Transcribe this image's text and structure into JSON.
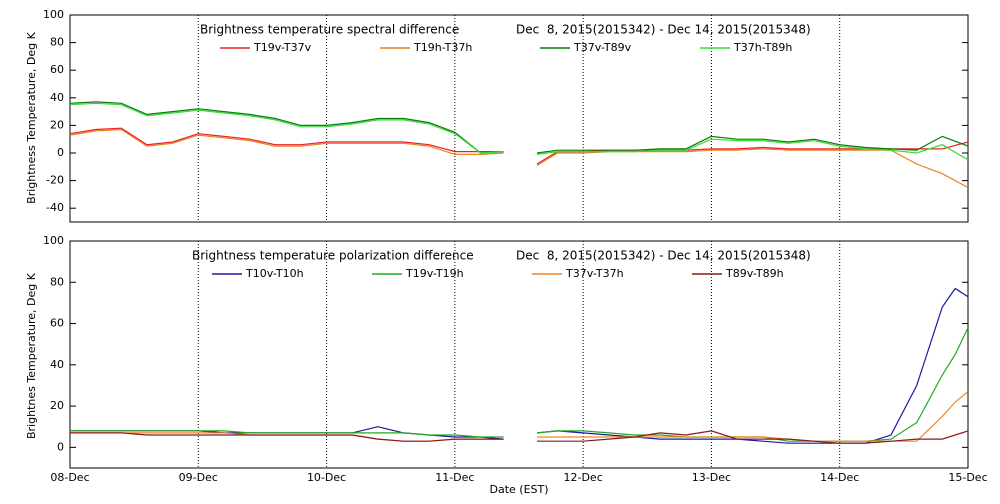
{
  "chart_data": [
    {
      "type": "line",
      "title": "Brightness temperature spectral difference",
      "subtitle": "Dec  8, 2015(2015342) - Dec 14, 2015(2015348)",
      "ylabel": "Brightness Temperature, Deg K",
      "x": [
        0,
        0.2,
        0.4,
        0.6,
        0.8,
        1.0,
        1.2,
        1.4,
        1.6,
        1.8,
        2.0,
        2.2,
        2.4,
        2.6,
        2.8,
        3.0,
        3.2,
        3.38,
        3.5,
        3.64,
        3.8,
        4.0,
        4.2,
        4.4,
        4.6,
        4.8,
        5.0,
        5.2,
        5.4,
        5.6,
        5.8,
        6.0,
        6.2,
        6.4,
        6.6,
        6.8,
        7.0
      ],
      "xlim": [
        0,
        7
      ],
      "xticks": [
        0,
        1,
        2,
        3,
        4,
        5,
        6,
        7
      ],
      "ylim": [
        -50,
        100
      ],
      "yticks": [
        -40,
        -20,
        0,
        20,
        40,
        60,
        80,
        100
      ],
      "grid": true,
      "series": [
        {
          "name": "T19v-T37v",
          "color": "#e8202a",
          "values": [
            14,
            17,
            18,
            6,
            8,
            14,
            12,
            10,
            6,
            6,
            8,
            8,
            8,
            8,
            6,
            1,
            1,
            1,
            null,
            -8,
            1,
            1,
            2,
            2,
            2,
            2,
            3,
            3,
            4,
            3,
            3,
            3,
            3,
            3,
            3,
            3,
            8
          ]
        },
        {
          "name": "T19h-T37h",
          "color": "#e8801e",
          "values": [
            13,
            16,
            17,
            5,
            7,
            13,
            11,
            9,
            5,
            5,
            7,
            7,
            7,
            7,
            5,
            -1,
            -1,
            0,
            null,
            -9,
            0,
            0,
            1,
            1,
            1,
            1,
            2,
            2,
            3,
            2,
            2,
            2,
            2,
            2,
            -8,
            -15,
            -25
          ]
        },
        {
          "name": "T37v-T89v",
          "color": "#0a7a0a",
          "values": [
            36,
            37,
            36,
            28,
            30,
            32,
            30,
            28,
            25,
            20,
            20,
            22,
            25,
            25,
            22,
            15,
            0,
            1,
            null,
            0,
            2,
            2,
            2,
            2,
            3,
            3,
            12,
            10,
            10,
            8,
            10,
            6,
            4,
            3,
            2,
            12,
            5
          ]
        },
        {
          "name": "T37h-T89h",
          "color": "#33dd33",
          "values": [
            35,
            36,
            35,
            27,
            29,
            31,
            29,
            27,
            24,
            19,
            19,
            21,
            24,
            24,
            21,
            14,
            0,
            1,
            null,
            -1,
            1,
            1,
            1,
            1,
            2,
            2,
            10,
            9,
            9,
            7,
            9,
            5,
            3,
            2,
            0,
            6,
            -5
          ]
        }
      ]
    },
    {
      "type": "line",
      "title": "Brightness temperature polarization difference",
      "subtitle": "Dec  8, 2015(2015342) - Dec 14, 2015(2015348)",
      "ylabel": "Brightnes Temperature, Deg K",
      "xlabel": "Date (EST)",
      "x": [
        0,
        0.2,
        0.4,
        0.6,
        0.8,
        1.0,
        1.2,
        1.4,
        1.6,
        1.8,
        2.0,
        2.2,
        2.4,
        2.6,
        2.8,
        3.0,
        3.2,
        3.38,
        3.5,
        3.64,
        3.8,
        4.0,
        4.2,
        4.4,
        4.6,
        4.8,
        5.0,
        5.2,
        5.4,
        5.6,
        5.8,
        6.0,
        6.2,
        6.4,
        6.6,
        6.8,
        6.9,
        7.0
      ],
      "xlim": [
        0,
        7
      ],
      "xticks": [
        {
          "value": 0,
          "label": "08-Dec"
        },
        {
          "value": 1,
          "label": "09-Dec"
        },
        {
          "value": 2,
          "label": "10-Dec"
        },
        {
          "value": 3,
          "label": "11-Dec"
        },
        {
          "value": 4,
          "label": "12-Dec"
        },
        {
          "value": 5,
          "label": "13-Dec"
        },
        {
          "value": 6,
          "label": "14-Dec"
        },
        {
          "value": 7,
          "label": "15-Dec"
        }
      ],
      "ylim": [
        -10,
        100
      ],
      "yticks": [
        0,
        20,
        40,
        60,
        80,
        100
      ],
      "grid": true,
      "series": [
        {
          "name": "T10v-T10h",
          "color": "#1a1aa0",
          "values": [
            8,
            8,
            8,
            8,
            8,
            8,
            7,
            7,
            7,
            7,
            7,
            7,
            10,
            7,
            6,
            5,
            5,
            4,
            null,
            7,
            8,
            7,
            6,
            5,
            4,
            4,
            4,
            4,
            3,
            2,
            2,
            2,
            2,
            6,
            30,
            68,
            77,
            73
          ]
        },
        {
          "name": "T19v-T19h",
          "color": "#22aa22",
          "values": [
            8,
            8,
            8,
            8,
            8,
            8,
            8,
            7,
            7,
            7,
            7,
            7,
            7,
            7,
            6,
            6,
            5,
            5,
            null,
            7,
            8,
            8,
            7,
            6,
            6,
            5,
            5,
            5,
            5,
            3,
            3,
            3,
            3,
            4,
            12,
            35,
            45,
            58
          ]
        },
        {
          "name": "T37v-T37h",
          "color": "#ee8822",
          "values": [
            7,
            7,
            7,
            7,
            7,
            7,
            7,
            6,
            6,
            6,
            6,
            6,
            4,
            3,
            3,
            4,
            4,
            4,
            null,
            5,
            5,
            5,
            5,
            5,
            5,
            5,
            5,
            5,
            5,
            4,
            3,
            3,
            3,
            3,
            3,
            15,
            22,
            27
          ]
        },
        {
          "name": "T89v-T89h",
          "color": "#8b1a1a",
          "values": [
            7,
            7,
            7,
            6,
            6,
            6,
            6,
            6,
            6,
            6,
            6,
            6,
            4,
            3,
            3,
            4,
            4,
            4,
            null,
            3,
            3,
            3,
            4,
            5,
            7,
            6,
            8,
            4,
            4,
            4,
            3,
            2,
            2,
            3,
            4,
            4,
            6,
            8
          ]
        }
      ]
    }
  ]
}
